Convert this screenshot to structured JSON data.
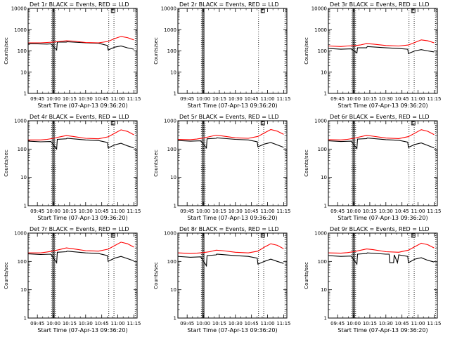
{
  "figure": {
    "ylabel": "Counts/sec",
    "xlabel": "Start Time (07-Apr-13 09:36:20)",
    "y_ticks": [
      "1",
      "10",
      "100",
      "1000",
      "10000"
    ],
    "x_ticks": [
      "09:45",
      "10:00",
      "10:15",
      "10:30",
      "10:45",
      "11:00",
      "11:15"
    ],
    "colors": {
      "events": "#000000",
      "lld": "#ff0000",
      "axes": "#000000"
    },
    "marker_label": "E"
  },
  "chart_data": [
    {
      "type": "line",
      "title": "Det 1r  BLACK = Events, RED = LLD",
      "xlabel": "Start Time (07-Apr-13 09:36:20)",
      "ylabel": "Counts/sec",
      "xlim": [
        9.606,
        11.3
      ],
      "ylim": [
        1,
        10000
      ],
      "yscale": "log",
      "marker_lines": [
        9.97,
        10.0,
        10.03,
        10.86,
        10.94,
        11.27
      ],
      "thick_lines": [
        10.0
      ],
      "e_marker": 10.92,
      "series": [
        {
          "name": "Events",
          "x": [
            9.61,
            9.9,
            9.96,
            10.05,
            10.06,
            10.2,
            10.21,
            10.5,
            10.7,
            10.84,
            10.85,
            10.95,
            11.05,
            11.15,
            11.25
          ],
          "values": [
            220,
            210,
            215,
            110,
            260,
            260,
            270,
            240,
            230,
            180,
            110,
            150,
            170,
            140,
            120
          ]
        },
        {
          "name": "LLD",
          "x": [
            9.61,
            9.8,
            9.9,
            10.0,
            10.1,
            10.2,
            10.3,
            10.5,
            10.7,
            10.85,
            10.95,
            11.05,
            11.15,
            11.25
          ],
          "values": [
            240,
            240,
            250,
            260,
            280,
            300,
            290,
            250,
            240,
            280,
            380,
            480,
            420,
            330
          ]
        }
      ]
    },
    {
      "type": "line",
      "title": "Det 2r  BLACK = Events, RED = LLD",
      "xlabel": "Start Time (07-Apr-13 09:36:20)",
      "ylabel": "Counts/sec",
      "xlim": [
        9.606,
        11.3
      ],
      "ylim": [
        1,
        10000
      ],
      "yscale": "log",
      "marker_lines": [
        9.97,
        10.0,
        10.86,
        11.27
      ],
      "thick_lines": [
        10.0
      ],
      "e_marker": 10.92,
      "series": []
    },
    {
      "type": "line",
      "title": "Det 3r  BLACK = Events, RED = LLD",
      "xlabel": "Start Time (07-Apr-13 09:36:20)",
      "ylabel": "Counts/sec",
      "xlim": [
        9.606,
        11.3
      ],
      "ylim": [
        1,
        10000
      ],
      "yscale": "log",
      "marker_lines": [
        9.97,
        10.0,
        10.03,
        10.86,
        10.94,
        11.27
      ],
      "thick_lines": [
        10.0
      ],
      "e_marker": 10.92,
      "series": [
        {
          "name": "Events",
          "x": [
            9.61,
            9.8,
            9.96,
            10.05,
            10.06,
            10.2,
            10.21,
            10.5,
            10.7,
            10.84,
            10.85,
            10.95,
            11.05,
            11.15,
            11.25
          ],
          "values": [
            130,
            120,
            125,
            80,
            140,
            140,
            160,
            140,
            130,
            120,
            75,
            100,
            115,
            100,
            90
          ]
        },
        {
          "name": "LLD",
          "x": [
            9.61,
            9.8,
            9.9,
            10.0,
            10.1,
            10.2,
            10.3,
            10.5,
            10.7,
            10.85,
            10.95,
            11.05,
            11.15,
            11.25
          ],
          "values": [
            170,
            160,
            170,
            175,
            190,
            220,
            210,
            180,
            170,
            190,
            250,
            330,
            300,
            240
          ]
        }
      ]
    },
    {
      "type": "line",
      "title": "Det 4r  BLACK = Events, RED = LLD",
      "xlabel": "Start Time (07-Apr-13 09:36:20)",
      "ylabel": "Counts/sec",
      "xlim": [
        9.606,
        11.3
      ],
      "ylim": [
        1,
        1000
      ],
      "yscale": "log",
      "marker_lines": [
        9.97,
        10.0,
        10.03,
        10.86,
        10.94,
        11.27
      ],
      "thick_lines": [
        10.0
      ],
      "e_marker": 10.92,
      "series": [
        {
          "name": "Events",
          "x": [
            9.61,
            9.8,
            9.96,
            10.05,
            10.06,
            10.2,
            10.21,
            10.5,
            10.7,
            10.84,
            10.85,
            10.95,
            11.05,
            11.15,
            11.25
          ],
          "values": [
            190,
            180,
            185,
            100,
            220,
            230,
            240,
            210,
            200,
            170,
            110,
            140,
            160,
            130,
            110
          ]
        },
        {
          "name": "LLD",
          "x": [
            9.61,
            9.8,
            9.9,
            10.0,
            10.1,
            10.2,
            10.3,
            10.5,
            10.7,
            10.85,
            10.95,
            11.05,
            11.15,
            11.25
          ],
          "values": [
            210,
            210,
            220,
            240,
            270,
            300,
            280,
            240,
            230,
            270,
            360,
            480,
            420,
            320
          ]
        }
      ]
    },
    {
      "type": "line",
      "title": "Det 5r  BLACK = Events, RED = LLD",
      "xlabel": "Start Time (07-Apr-13 09:36:20)",
      "ylabel": "Counts/sec",
      "xlim": [
        9.606,
        11.3
      ],
      "ylim": [
        1,
        1000
      ],
      "yscale": "log",
      "marker_lines": [
        9.97,
        10.0,
        10.03,
        10.86,
        10.94,
        11.27
      ],
      "thick_lines": [
        10.0
      ],
      "e_marker": 10.92,
      "series": [
        {
          "name": "Events",
          "x": [
            9.61,
            9.8,
            9.96,
            10.05,
            10.06,
            10.2,
            10.21,
            10.5,
            10.7,
            10.84,
            10.85,
            10.95,
            11.05,
            11.15,
            11.25
          ],
          "values": [
            200,
            190,
            195,
            110,
            230,
            240,
            250,
            220,
            210,
            180,
            120,
            150,
            170,
            140,
            115
          ]
        },
        {
          "name": "LLD",
          "x": [
            9.61,
            9.8,
            9.9,
            10.0,
            10.1,
            10.2,
            10.3,
            10.5,
            10.7,
            10.85,
            10.95,
            11.05,
            11.15,
            11.25
          ],
          "values": [
            220,
            215,
            225,
            245,
            275,
            310,
            290,
            250,
            240,
            280,
            370,
            490,
            430,
            330
          ]
        }
      ]
    },
    {
      "type": "line",
      "title": "Det 6r  BLACK = Events, RED = LLD",
      "xlabel": "Start Time (07-Apr-13 09:36:20)",
      "ylabel": "Counts/sec",
      "xlim": [
        9.606,
        11.3
      ],
      "ylim": [
        1,
        1000
      ],
      "yscale": "log",
      "marker_lines": [
        9.97,
        10.0,
        10.03,
        10.86,
        10.94,
        11.27
      ],
      "thick_lines": [
        10.0
      ],
      "e_marker": 10.92,
      "series": [
        {
          "name": "Events",
          "x": [
            9.61,
            9.8,
            9.96,
            10.05,
            10.06,
            10.2,
            10.21,
            10.5,
            10.7,
            10.84,
            10.85,
            10.95,
            11.05,
            11.15,
            11.25
          ],
          "values": [
            195,
            185,
            190,
            105,
            225,
            235,
            245,
            215,
            205,
            175,
            115,
            145,
            165,
            135,
            110
          ]
        },
        {
          "name": "LLD",
          "x": [
            9.61,
            9.8,
            9.9,
            10.0,
            10.1,
            10.2,
            10.3,
            10.5,
            10.7,
            10.85,
            10.95,
            11.05,
            11.15,
            11.25
          ],
          "values": [
            215,
            210,
            220,
            240,
            270,
            305,
            285,
            245,
            235,
            275,
            365,
            485,
            425,
            325
          ]
        }
      ]
    },
    {
      "type": "line",
      "title": "Det 7r  BLACK = Events, RED = LLD",
      "xlabel": "Start Time (07-Apr-13 09:36:20)",
      "ylabel": "Counts/sec",
      "xlim": [
        9.606,
        11.3
      ],
      "ylim": [
        1,
        1000
      ],
      "yscale": "log",
      "marker_lines": [
        9.97,
        10.0,
        10.03,
        10.86,
        10.94,
        11.27
      ],
      "thick_lines": [
        10.0
      ],
      "e_marker": 10.92,
      "series": [
        {
          "name": "Events",
          "x": [
            9.61,
            9.8,
            9.96,
            10.05,
            10.06,
            10.2,
            10.21,
            10.5,
            10.7,
            10.84,
            10.85,
            10.95,
            11.05,
            11.15,
            11.25
          ],
          "values": [
            185,
            175,
            180,
            90,
            210,
            220,
            230,
            200,
            190,
            160,
            100,
            130,
            150,
            125,
            105
          ]
        },
        {
          "name": "LLD",
          "x": [
            9.61,
            9.8,
            9.9,
            10.0,
            10.1,
            10.2,
            10.3,
            10.5,
            10.7,
            10.85,
            10.95,
            11.05,
            11.15,
            11.25
          ],
          "values": [
            200,
            200,
            215,
            235,
            265,
            300,
            280,
            240,
            230,
            270,
            360,
            480,
            420,
            320
          ]
        }
      ]
    },
    {
      "type": "line",
      "title": "Det 8r  BLACK = Events, RED = LLD",
      "xlabel": "Start Time (07-Apr-13 09:36:20)",
      "ylabel": "Counts/sec",
      "xlim": [
        9.606,
        11.3
      ],
      "ylim": [
        1,
        1000
      ],
      "yscale": "log",
      "marker_lines": [
        9.97,
        10.0,
        10.86,
        10.94,
        11.27
      ],
      "thick_lines": [
        10.0
      ],
      "e_marker": 10.92,
      "series": [
        {
          "name": "Events",
          "x": [
            9.61,
            9.8,
            9.96,
            10.05,
            10.06,
            10.2,
            10.21,
            10.5,
            10.7,
            10.84,
            10.85,
            10.95,
            11.05,
            11.15,
            11.25
          ],
          "values": [
            150,
            140,
            145,
            70,
            160,
            170,
            180,
            160,
            150,
            130,
            80,
            100,
            120,
            100,
            85
          ]
        },
        {
          "name": "LLD",
          "x": [
            9.61,
            9.8,
            9.9,
            10.0,
            10.1,
            10.2,
            10.3,
            10.5,
            10.7,
            10.85,
            10.95,
            11.05,
            11.15,
            11.25
          ],
          "values": [
            200,
            190,
            195,
            205,
            220,
            250,
            240,
            210,
            200,
            230,
            320,
            420,
            370,
            280
          ]
        }
      ]
    },
    {
      "type": "line",
      "title": "Det 9r  BLACK = Events, RED = LLD",
      "xlabel": "Start Time (07-Apr-13 09:36:20)",
      "ylabel": "Counts/sec",
      "xlim": [
        9.606,
        11.3
      ],
      "ylim": [
        1,
        1000
      ],
      "yscale": "log",
      "marker_lines": [
        9.97,
        10.0,
        10.03,
        10.86,
        10.94,
        11.27
      ],
      "thick_lines": [
        10.0
      ],
      "e_marker": 10.92,
      "series": [
        {
          "name": "Events",
          "x": [
            9.61,
            9.8,
            9.96,
            10.05,
            10.06,
            10.2,
            10.21,
            10.5,
            10.55,
            10.56,
            10.62,
            10.63,
            10.68,
            10.7,
            10.84,
            10.85,
            10.95,
            11.05,
            11.15,
            11.25
          ],
          "values": [
            160,
            150,
            155,
            80,
            180,
            190,
            200,
            180,
            180,
            90,
            90,
            170,
            90,
            170,
            150,
            90,
            120,
            135,
            110,
            95
          ]
        },
        {
          "name": "LLD",
          "x": [
            9.61,
            9.8,
            9.9,
            10.0,
            10.1,
            10.2,
            10.3,
            10.5,
            10.7,
            10.85,
            10.95,
            11.05,
            11.15,
            11.25
          ],
          "values": [
            200,
            195,
            205,
            220,
            245,
            275,
            260,
            220,
            210,
            250,
            330,
            440,
            390,
            300
          ]
        }
      ]
    }
  ]
}
